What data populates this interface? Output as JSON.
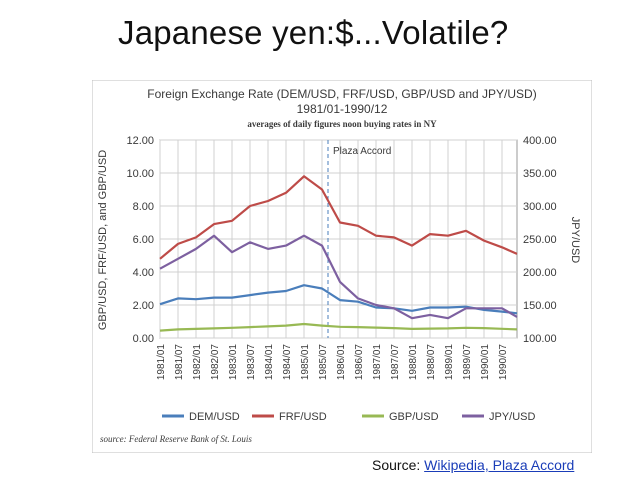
{
  "slide": {
    "title": "Japanese yen:$...Volatile?",
    "source_prefix": "Source: ",
    "source_link": "Wikipedia, Plaza Accord"
  },
  "chart_data": {
    "type": "line",
    "title": "Foreign Exchange Rate (DEM/USD, FRF/USD,  GBP/USD and JPY/USD)",
    "subtitle": "1981/01-1990/12",
    "subtitle2": "averages of daily figures noon buying rates in NY",
    "ylabel_left": "GBP/USD, FRF/USD, and GBP/USD",
    "ylabel_right": "JPY/USD",
    "ylim_left": [
      0,
      12
    ],
    "ylim_right": [
      100,
      400
    ],
    "yticks_left": [
      "0.00",
      "2.00",
      "4.00",
      "6.00",
      "8.00",
      "10.00",
      "12.00"
    ],
    "yticks_right": [
      "100.00",
      "150.00",
      "200.00",
      "250.00",
      "300.00",
      "350.00",
      "400.00"
    ],
    "x_ticks": [
      "1981/01",
      "1981/07",
      "1982/01",
      "1982/07",
      "1983/01",
      "1983/07",
      "1984/01",
      "1984/07",
      "1985/01",
      "1985/07",
      "1986/01",
      "1986/07",
      "1987/01",
      "1987/07",
      "1988/01",
      "1988/07",
      "1989/01",
      "1989/07",
      "1990/01",
      "1990/07"
    ],
    "annotation": {
      "label": "Plaza Accord",
      "x": "1985/09"
    },
    "source_note": "source: Federal Reserve Bank of St. Louis",
    "grid": true,
    "legend_position": "bottom",
    "x": [
      "1981/01",
      "1981/07",
      "1982/01",
      "1982/07",
      "1983/01",
      "1983/07",
      "1984/01",
      "1984/07",
      "1985/01",
      "1985/07",
      "1986/01",
      "1986/07",
      "1987/01",
      "1987/07",
      "1988/01",
      "1988/07",
      "1989/01",
      "1989/07",
      "1990/01",
      "1990/07",
      "1990/12"
    ],
    "series": [
      {
        "name": "DEM/USD",
        "axis": "left",
        "color": "#4a7ebb",
        "values": [
          2.05,
          2.4,
          2.35,
          2.45,
          2.45,
          2.6,
          2.75,
          2.85,
          3.2,
          3.0,
          2.3,
          2.2,
          1.85,
          1.8,
          1.65,
          1.85,
          1.85,
          1.9,
          1.7,
          1.6,
          1.5
        ]
      },
      {
        "name": "FRF/USD",
        "axis": "left",
        "color": "#be4b48",
        "values": [
          4.8,
          5.7,
          6.1,
          6.9,
          7.1,
          8.0,
          8.3,
          8.8,
          9.8,
          9.0,
          7.0,
          6.8,
          6.2,
          6.1,
          5.6,
          6.3,
          6.2,
          6.5,
          5.9,
          5.5,
          5.1
        ]
      },
      {
        "name": "GBP/USD",
        "axis": "left",
        "color": "#98b954",
        "values": [
          0.45,
          0.52,
          0.55,
          0.58,
          0.62,
          0.66,
          0.7,
          0.75,
          0.85,
          0.75,
          0.68,
          0.66,
          0.63,
          0.6,
          0.55,
          0.57,
          0.58,
          0.62,
          0.6,
          0.56,
          0.52
        ]
      },
      {
        "name": "JPY/USD",
        "axis": "right",
        "color": "#7d60a0",
        "values": [
          205,
          220,
          235,
          255,
          230,
          245,
          235,
          240,
          255,
          240,
          185,
          160,
          150,
          145,
          130,
          135,
          130,
          145,
          145,
          145,
          132
        ]
      }
    ]
  }
}
